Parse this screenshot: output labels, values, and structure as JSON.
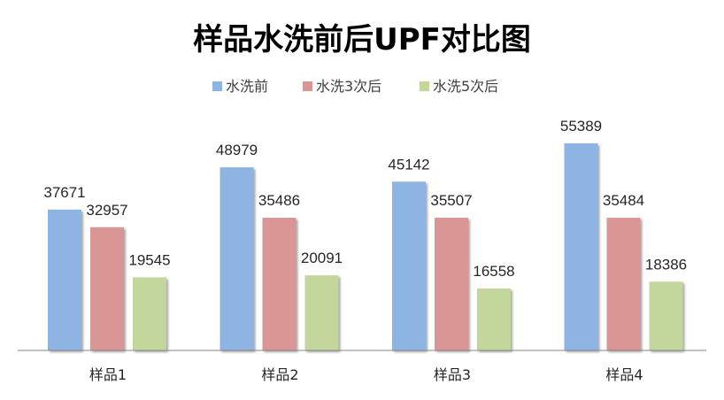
{
  "chart_data": {
    "type": "bar",
    "title": "样品水洗前后UPF对比图",
    "categories": [
      "样品1",
      "样品2",
      "样品3",
      "样品4"
    ],
    "series": [
      {
        "name": "水洗前",
        "color": "#8EB4E3",
        "values": [
          37671,
          48979,
          45142,
          55389
        ]
      },
      {
        "name": "水洗3次后",
        "color": "#D99694",
        "values": [
          32957,
          35486,
          35507,
          35484
        ]
      },
      {
        "name": "水洗5次后",
        "color": "#C3D69B",
        "values": [
          19545,
          20091,
          16558,
          18386
        ]
      }
    ],
    "ylim": [
      0,
      60000
    ],
    "grid": false,
    "legend_position": "top"
  }
}
